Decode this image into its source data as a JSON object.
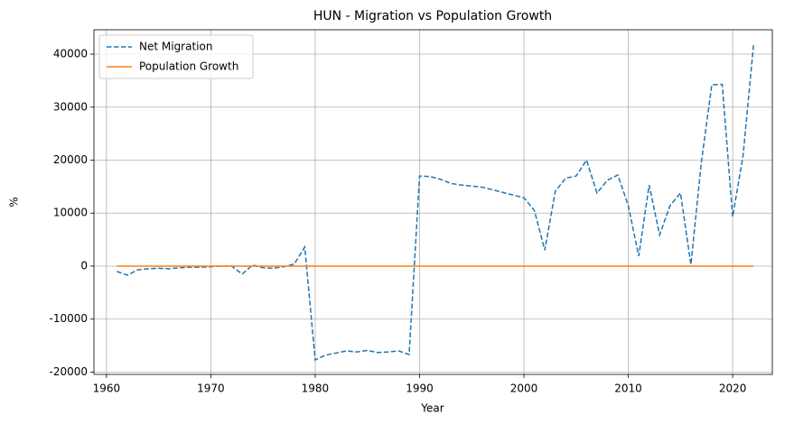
{
  "chart_data": {
    "type": "line",
    "title": "HUN - Migration vs Population Growth",
    "x_label": "Year",
    "y_label": "%",
    "x": [
      1961,
      1962,
      1963,
      1964,
      1965,
      1966,
      1967,
      1968,
      1969,
      1970,
      1971,
      1972,
      1973,
      1974,
      1975,
      1976,
      1977,
      1978,
      1979,
      1980,
      1981,
      1982,
      1983,
      1984,
      1985,
      1986,
      1987,
      1988,
      1989,
      1990,
      1991,
      1992,
      1993,
      1994,
      1995,
      1996,
      1997,
      1998,
      1999,
      2000,
      2001,
      2002,
      2003,
      2004,
      2005,
      2006,
      2007,
      2008,
      2009,
      2010,
      2011,
      2012,
      2013,
      2014,
      2015,
      2016,
      2017,
      2018,
      2019,
      2020,
      2021,
      2022
    ],
    "series": [
      {
        "name": "Net Migration",
        "color": "#1f77b4",
        "dash": true,
        "values": [
          -1000,
          -1700,
          -700,
          -500,
          -400,
          -500,
          -300,
          -200,
          -200,
          -100,
          0,
          0,
          -1500,
          200,
          -300,
          -400,
          -100,
          400,
          3600,
          -17700,
          -16800,
          -16400,
          -16000,
          -16200,
          -15900,
          -16300,
          -16200,
          -16000,
          -16700,
          17000,
          16900,
          16400,
          15600,
          15300,
          15100,
          14900,
          14400,
          13900,
          13400,
          12900,
          10500,
          3000,
          14100,
          16600,
          17000,
          20000,
          13800,
          16200,
          17200,
          11400,
          1900,
          15300,
          5900,
          11400,
          13800,
          300,
          19600,
          34200,
          34300,
          9300,
          20900,
          41700
        ]
      },
      {
        "name": "Population Growth",
        "color": "#ff7f0e",
        "dash": false,
        "values": [
          0.3,
          0.3,
          0.4,
          0.4,
          0.3,
          0.3,
          0.4,
          0.4,
          0.4,
          0.4,
          0.3,
          0.3,
          0.3,
          0.4,
          0.5,
          0.5,
          0.4,
          0.3,
          0.2,
          0.1,
          0.0,
          -0.1,
          -0.2,
          -0.2,
          -0.2,
          -0.2,
          -0.2,
          -0.2,
          -0.5,
          -0.2,
          -0.1,
          -0.1,
          -0.2,
          -0.2,
          -0.3,
          -0.3,
          -0.3,
          -0.3,
          -0.4,
          -0.3,
          -0.3,
          -0.2,
          -0.3,
          -0.2,
          -0.2,
          -0.2,
          -0.2,
          -0.2,
          -0.2,
          -0.3,
          -0.3,
          -0.3,
          -0.3,
          -0.3,
          -0.3,
          -0.3,
          -0.2,
          -0.1,
          -0.1,
          -0.2,
          -0.3,
          -0.4
        ]
      }
    ],
    "xlim": [
      1958.8,
      2023.8
    ],
    "ylim": [
      -20430,
      44600
    ],
    "xticks": [
      1960,
      1970,
      1980,
      1990,
      2000,
      2010,
      2020
    ],
    "yticks": [
      -20000,
      -10000,
      0,
      10000,
      20000,
      30000,
      40000
    ],
    "grid": true,
    "legend": "upper left"
  }
}
